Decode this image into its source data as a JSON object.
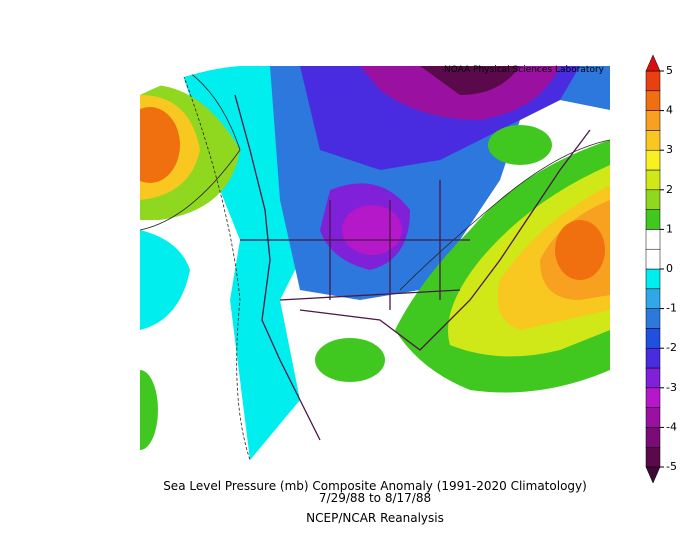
{
  "credit": "NOAA Physical Sciences Laboratory",
  "caption": [
    "Sea Level Pressure (mb) Composite Anomaly (1991-2020 Climatology)",
    "7/29/88   to 8/17/88",
    "NCEP/NCAR Reanalysis"
  ],
  "colorbar": {
    "ticks": [
      5,
      4,
      3,
      2,
      1,
      0,
      -1,
      -2,
      -3,
      -4,
      -5
    ],
    "range": [
      -5,
      5
    ],
    "colors": [
      "#5a0a4a",
      "#7a0c78",
      "#9a10a0",
      "#b418c8",
      "#8020d8",
      "#4a2ce0",
      "#2050e0",
      "#2c78dc",
      "#30a8e8",
      "#00eeee",
      "#ffffff",
      "#ffffff",
      "#40c820",
      "#90d820",
      "#d0e818",
      "#f8f020",
      "#f8c820",
      "#f8a020",
      "#f07010",
      "#e84010"
    ],
    "over_color": "#d81010",
    "under_color": "#3c0834"
  }
}
